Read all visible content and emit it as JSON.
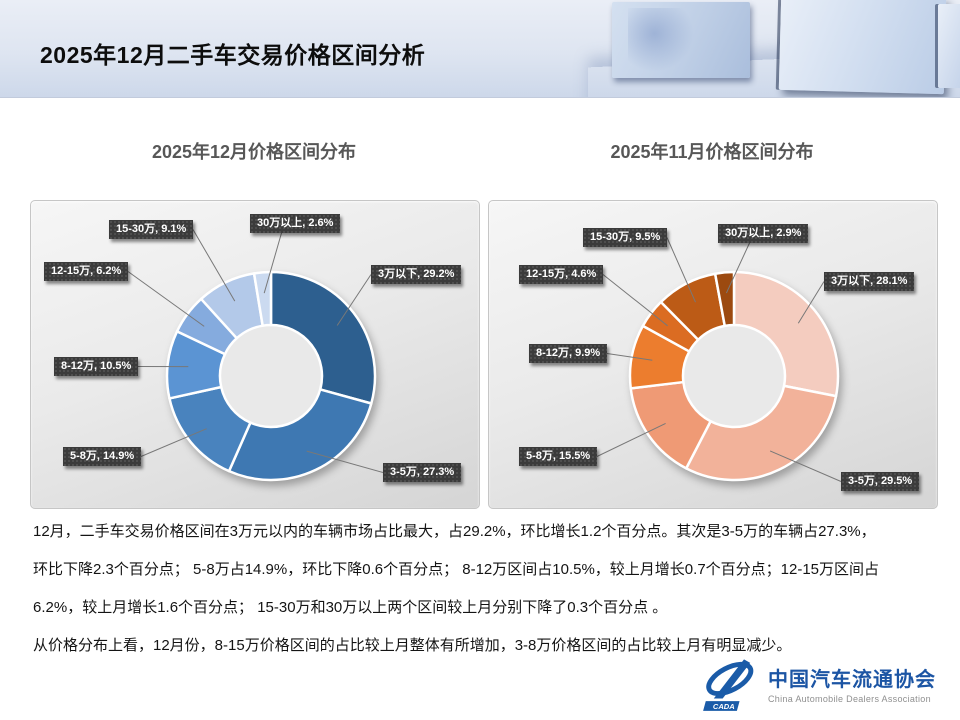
{
  "header": {
    "title": "2025年12月二手车交易价格区间分析"
  },
  "chart_data": [
    {
      "type": "pie",
      "subtype": "donut",
      "title": "2025年12月价格区间分布",
      "categories": [
        "3万以下",
        "3-5万",
        "5-8万",
        "8-12万",
        "12-15万",
        "15-30万",
        "30万以上"
      ],
      "values": [
        29.2,
        27.3,
        14.9,
        10.5,
        6.2,
        9.1,
        2.6
      ],
      "unit": "%",
      "colors": [
        "#2D5F8F",
        "#3E78B2",
        "#4983BE",
        "#5B94D3",
        "#85ABDE",
        "#B3C9E9",
        "#CBDAF0"
      ],
      "start_angle": "12-oclock",
      "direction": "clockwise",
      "inner_radius_ratio": 0.49,
      "data_label_format": "{category}, {value}%",
      "legend": "none",
      "label_box_color": "#3B3B3B",
      "label_text_color": "#FFFFFF"
    },
    {
      "type": "pie",
      "subtype": "donut",
      "title": "2025年11月价格区间分布",
      "categories": [
        "3万以下",
        "3-5万",
        "5-8万",
        "8-12万",
        "12-15万",
        "15-30万",
        "30万以上"
      ],
      "values": [
        28.1,
        29.5,
        15.5,
        9.9,
        4.6,
        9.5,
        2.9
      ],
      "unit": "%",
      "colors": [
        "#F4CCBF",
        "#F2B29A",
        "#EF9A75",
        "#EC7D2E",
        "#DB6C22",
        "#BC5B16",
        "#9C4A10"
      ],
      "start_angle": "12-oclock",
      "direction": "clockwise",
      "inner_radius_ratio": 0.49,
      "data_label_format": "{category}, {value}%",
      "legend": "none",
      "label_box_color": "#3B3B3B",
      "label_text_color": "#FFFFFF"
    }
  ],
  "analysis": {
    "lines": [
      "12月，二手车交易价格区间在3万元以内的车辆市场占比最大，占29.2%，环比增长1.2个百分点。其次是3-5万的车辆占27.3%，",
      "环比下降2.3个百分点； 5-8万占14.9%，环比下降0.6个百分点； 8-12万区间占10.5%，较上月增长0.7个百分点；12-15万区间占",
      "6.2%，较上月增长1.6个百分点； 15-30万和30万以上两个区间较上月分别下降了0.3个百分点 。",
      "从价格分布上看，12月份，8-15万价格区间的占比较上月整体有所增加，3-8万价格区间的占比较上月有明显减少。"
    ]
  },
  "footer": {
    "logo_acronym": "CADA",
    "org_name_cn": "中国汽车流通协会",
    "org_name_en": "China Automobile Dealers Association"
  }
}
